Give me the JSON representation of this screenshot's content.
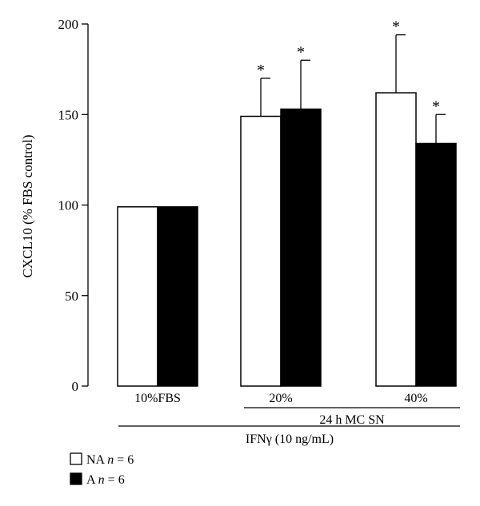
{
  "chart_data": {
    "type": "bar",
    "ylabel": "CXCL10 (% FBS control)",
    "ylim": [
      0,
      200
    ],
    "yticks": [
      0,
      50,
      100,
      150,
      200
    ],
    "categories": [
      "10%FBS",
      "20%",
      "40%"
    ],
    "series": [
      {
        "name": "NA",
        "legend_label": "NA ",
        "legend_n": "n",
        "legend_eq": " = 6",
        "fill": "#ffffff",
        "values": [
          99,
          149,
          162
        ],
        "errors": [
          0,
          21,
          32
        ],
        "significant": [
          false,
          true,
          true
        ]
      },
      {
        "name": "A",
        "legend_label": "A ",
        "legend_n": "n",
        "legend_eq": " = 6",
        "fill": "#000000",
        "values": [
          99,
          153,
          134
        ],
        "errors": [
          0,
          27,
          16
        ],
        "significant": [
          false,
          true,
          true
        ]
      }
    ],
    "significance_marker": "*",
    "group_labels": {
      "supernatant": "24 h MC SN",
      "treatment": "IFNγ (10 ng/mL)"
    }
  }
}
